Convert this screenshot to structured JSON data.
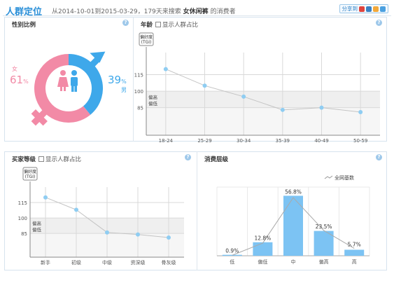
{
  "header": {
    "title": "人群定位",
    "desc_prefix": "从2014-10-01到2015-03-29，179天来搜索",
    "keyword": "女休闲裤",
    "desc_suffix": "的消费者",
    "share_label": "分享到"
  },
  "gender": {
    "title": "性别比例",
    "female_label": "女",
    "female_value": "61",
    "male_value": "39",
    "male_label": "男",
    "percent_sign": "%",
    "female_color": "#f28aa6",
    "male_color": "#3ea8ea"
  },
  "age": {
    "title": "年龄",
    "checkbox_label": "显示人群占比",
    "tgi_label_1": "偏好度",
    "tgi_label_2": "(TGI)",
    "high_label": "偏高",
    "low_label": "偏低",
    "chart_data": {
      "type": "line",
      "categories": [
        "18-24",
        "25-29",
        "30-34",
        "35-39",
        "40-49",
        "50-59"
      ],
      "values": [
        120,
        105,
        95,
        83,
        85,
        81
      ],
      "yticks": [
        85,
        100,
        115
      ],
      "ylim": [
        60,
        135
      ],
      "band": [
        85,
        100
      ]
    }
  },
  "purchase": {
    "title": "买家等级",
    "checkbox_label": "显示人群占比",
    "tgi_label_1": "偏好度",
    "tgi_label_2": "(TGI)",
    "high_label": "偏高",
    "low_label": "偏低",
    "chart_data": {
      "type": "line",
      "categories": [
        "新手",
        "初级",
        "中级",
        "资深级",
        "骨灰级"
      ],
      "values": [
        120,
        108,
        86,
        84,
        81
      ],
      "yticks": [
        85,
        100,
        115
      ],
      "ylim": [
        62,
        130
      ],
      "band": [
        85,
        100
      ]
    }
  },
  "consumption": {
    "title": "消费层级",
    "legend_label": "全网基数",
    "chart_data": {
      "type": "bar",
      "categories": [
        "低",
        "偏低",
        "中",
        "偏高",
        "高"
      ],
      "values": [
        0.9,
        12.8,
        56.8,
        23.5,
        5.7
      ],
      "labels": [
        "0.9%",
        "12.8%",
        "56.8%",
        "23.5%",
        "5.7%"
      ],
      "baseline": [
        0.5,
        12,
        55,
        24,
        7
      ],
      "ylim": [
        0,
        65
      ]
    }
  }
}
